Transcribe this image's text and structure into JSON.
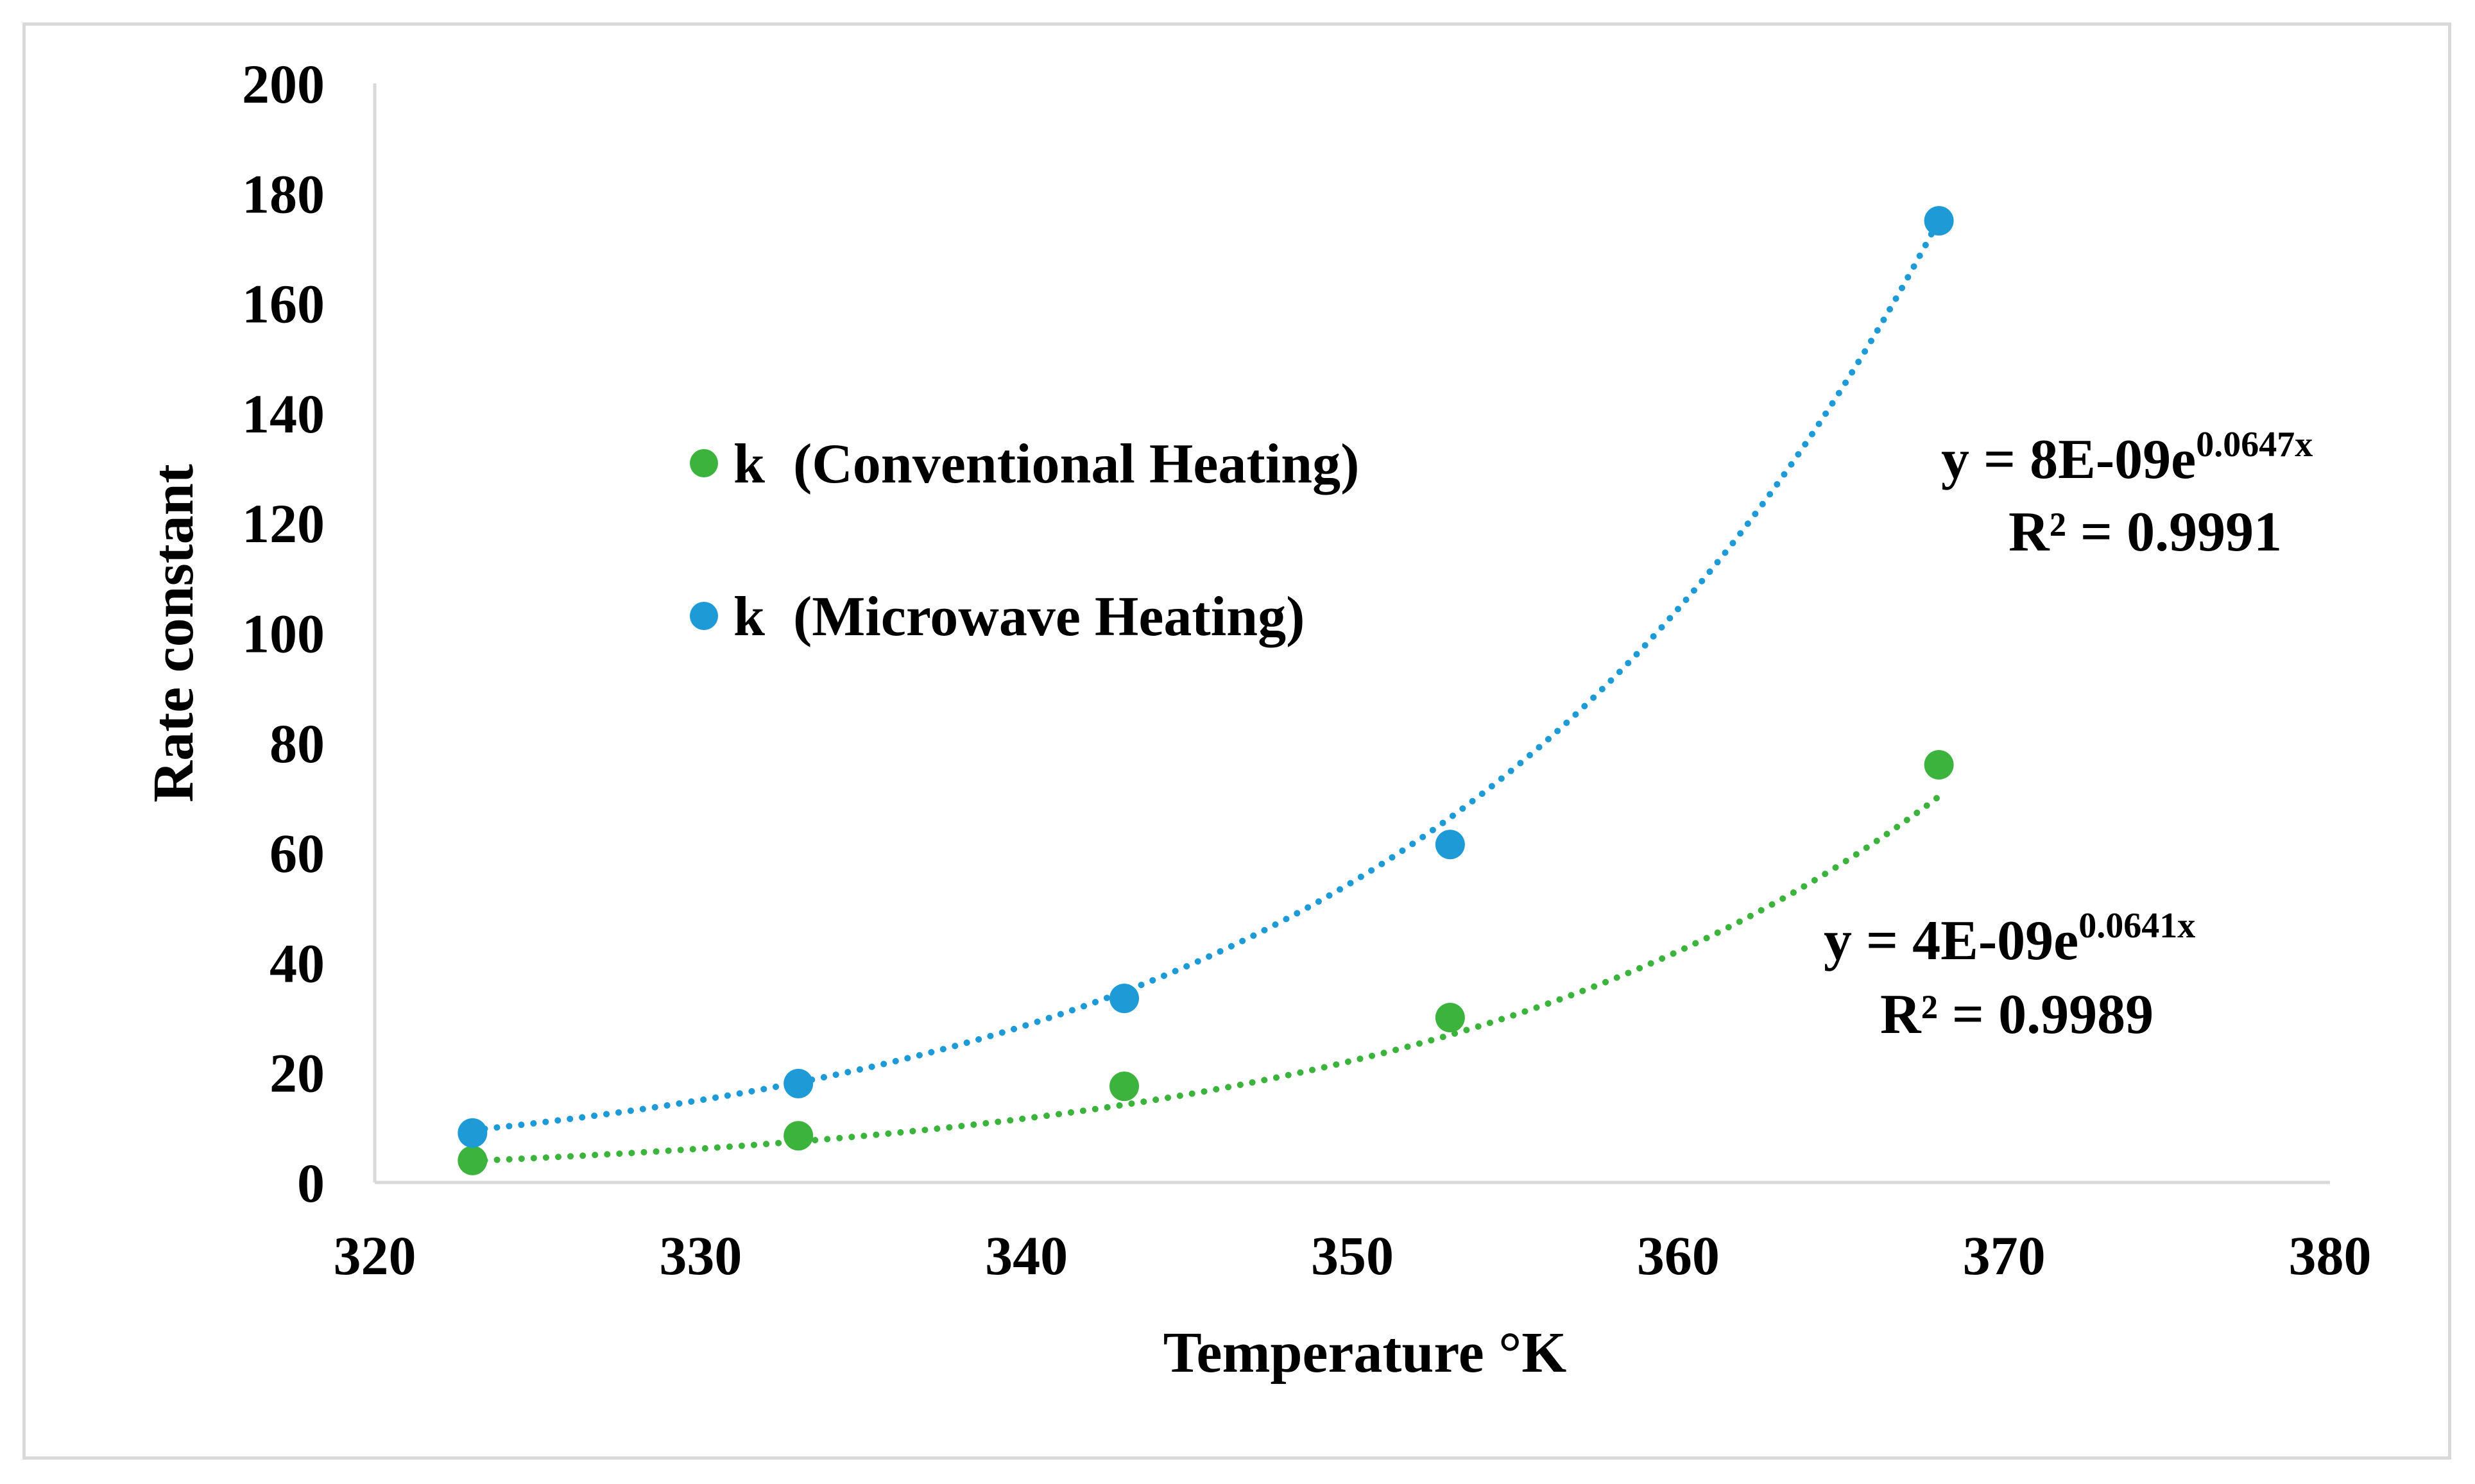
{
  "chart_data": {
    "type": "scatter",
    "title": "",
    "xlabel": "Temperature °K",
    "ylabel": "Rate constant",
    "xlim": [
      320,
      380
    ],
    "ylim": [
      0,
      200
    ],
    "x_ticks": [
      320,
      330,
      340,
      350,
      360,
      370,
      380
    ],
    "y_ticks": [
      0,
      20,
      40,
      60,
      80,
      100,
      120,
      140,
      160,
      180,
      200
    ],
    "grid": false,
    "legend_position": "center-left",
    "series": [
      {
        "name": "k  (Conventional Heating)",
        "color": "#3cb33c",
        "x": [
          323,
          333,
          343,
          353,
          368
        ],
        "y": [
          4,
          8.5,
          17.5,
          30,
          76
        ],
        "trendline": {
          "type": "exponential",
          "a": 4e-09,
          "b": 0.0641,
          "style": "dotted",
          "equation_prefix": "y = 4E-09e",
          "equation_exponent": "0.0641x",
          "r_squared": "R² = 0.9989"
        }
      },
      {
        "name": "k  (Microwave Heating)",
        "color": "#1e9ad6",
        "x": [
          323,
          333,
          343,
          353,
          368
        ],
        "y": [
          9,
          18,
          33.5,
          61.5,
          175
        ],
        "trendline": {
          "type": "exponential",
          "a": 8e-09,
          "b": 0.0647,
          "style": "dotted",
          "equation_prefix": "y = 8E-09e",
          "equation_exponent": "0.0647x",
          "r_squared": "R² = 0.9991"
        }
      }
    ]
  }
}
